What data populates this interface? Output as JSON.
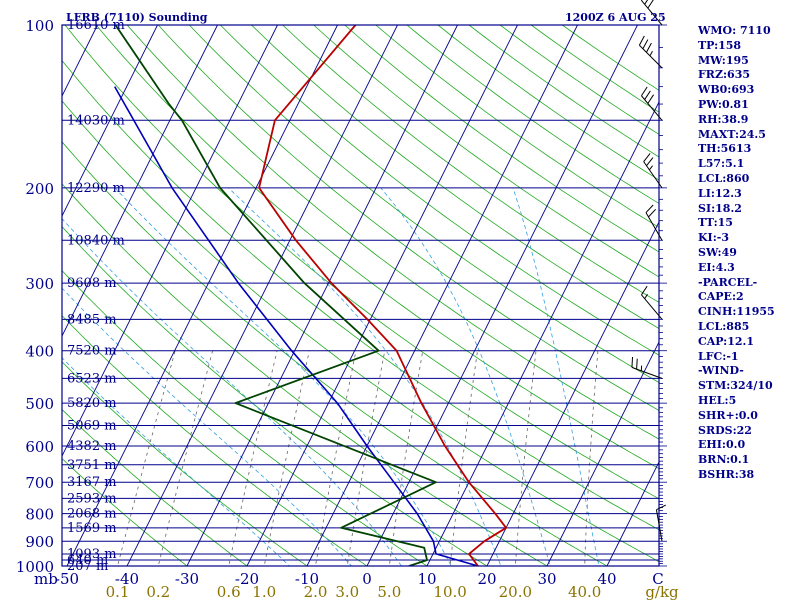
{
  "header": {
    "station": "LFRB (7110) Sounding",
    "time": "1200Z  6 AUG 25"
  },
  "indices": [
    "WMO: 7110",
    "TP:158",
    "MW:195",
    "FRZ:635",
    "WB0:693",
    "PW:0.81",
    "RH:38.9",
    "MAXT:24.5",
    "TH:5613",
    "L57:5.1",
    "LCL:860",
    "LI:12.3",
    "SI:18.2",
    "TT:15",
    "KI:-3",
    "SW:49",
    "EI:4.3",
    "-PARCEL-",
    "CAPE:2",
    "CINH:11955",
    "LCL:885",
    "CAP:12.1",
    "LFC:-1",
    "-WIND-",
    "STM:324/10",
    "HEL:5",
    "SHR+:0.0",
    "SRDS:22",
    "EHI:0.0",
    "BRN:0.1",
    "BSHR:38"
  ],
  "colors": {
    "frame": "#00008b",
    "isobar": "#00008b",
    "isotherm": "#00008b",
    "dry_adiabat": "#22aa22",
    "moist_adiabat": "#33a0e0",
    "mixing_ratio": "#666666",
    "temperature": "#bb0000",
    "dewpoint": "#004400",
    "parcel": "#0000bb",
    "mixing_label": "#8b7300"
  },
  "chart_data": {
    "type": "line",
    "title": "LFRB (7110) Sounding",
    "subtitle": "1200Z  6 AUG 25",
    "xlabel": "C",
    "ylabel": "mb",
    "pressure_levels": [
      1000,
      900,
      800,
      700,
      600,
      500,
      400,
      300,
      200,
      100
    ],
    "heights": [
      {
        "p": 1000,
        "label": "207 m"
      },
      {
        "p": 975,
        "label": "640 m"
      },
      {
        "p": 950,
        "label": "1093 m"
      },
      {
        "p": 850,
        "label": "1569 m"
      },
      {
        "p": 800,
        "label": "2068 m"
      },
      {
        "p": 750,
        "label": "2593 m"
      },
      {
        "p": 700,
        "label": "3167 m"
      },
      {
        "p": 650,
        "label": "3751 m"
      },
      {
        "p": 600,
        "label": "4382 m"
      },
      {
        "p": 550,
        "label": "5069 m"
      },
      {
        "p": 500,
        "label": "5820 m"
      },
      {
        "p": 450,
        "label": "6523 m"
      },
      {
        "p": 400,
        "label": "7520 m"
      },
      {
        "p": 350,
        "label": "8485 m"
      },
      {
        "p": 300,
        "label": "9608 m"
      },
      {
        "p": 250,
        "label": "10840 m"
      },
      {
        "p": 200,
        "label": "12290 m"
      },
      {
        "p": 150,
        "label": "14030 m"
      },
      {
        "p": 100,
        "label": "16610 m"
      }
    ],
    "temperature_ticks": [
      "-50",
      "-40",
      "-30",
      "-20",
      "-10",
      "0",
      "10",
      "20",
      "30",
      "40"
    ],
    "mixing_ratio_ticks": [
      {
        "value": 0.1,
        "label": "0.1"
      },
      {
        "value": 0.2,
        "label": "0.2"
      },
      {
        "value": 0.6,
        "label": "0.6"
      },
      {
        "value": 1.0,
        "label": "1.0"
      },
      {
        "value": 2.0,
        "label": "2.0"
      },
      {
        "value": 3.0,
        "label": "3.0"
      },
      {
        "value": 5.0,
        "label": "5.0"
      },
      {
        "value": 10.0,
        "label": "10.0"
      },
      {
        "value": 20.0,
        "label": "20.0"
      },
      {
        "value": 40.0,
        "label": "40.0"
      }
    ],
    "mixing_ratio_unit": "g/kg",
    "temperature": [
      {
        "p": 1000,
        "t": 18.5
      },
      {
        "p": 950,
        "t": 16.0
      },
      {
        "p": 900,
        "t": 17.5
      },
      {
        "p": 850,
        "t": 20.0
      },
      {
        "p": 800,
        "t": 17.0
      },
      {
        "p": 700,
        "t": 10.0
      },
      {
        "p": 600,
        "t": 3.0
      },
      {
        "p": 500,
        "t": -4.5
      },
      {
        "p": 400,
        "t": -13.0
      },
      {
        "p": 350,
        "t": -20.5
      },
      {
        "p": 300,
        "t": -29.5
      },
      {
        "p": 250,
        "t": -39.0
      },
      {
        "p": 200,
        "t": -49.5
      },
      {
        "p": 150,
        "t": -52.5
      },
      {
        "p": 100,
        "t": -47.0
      }
    ],
    "dewpoint": [
      {
        "p": 1000,
        "t": 7.0
      },
      {
        "p": 975,
        "t": 9.5
      },
      {
        "p": 925,
        "t": 8.0
      },
      {
        "p": 850,
        "t": -7.5
      },
      {
        "p": 700,
        "t": 4.5
      },
      {
        "p": 500,
        "t": -35.5
      },
      {
        "p": 400,
        "t": -16.0
      },
      {
        "p": 300,
        "t": -34.0
      },
      {
        "p": 200,
        "t": -56.0
      },
      {
        "p": 150,
        "t": -68.0
      },
      {
        "p": 140,
        "t": -71.5
      },
      {
        "p": 100,
        "t": -87.0
      }
    ],
    "parcel": [
      {
        "p": 1000,
        "t": 18.5
      },
      {
        "p": 950,
        "t": 10.5
      },
      {
        "p": 900,
        "t": 9.0
      },
      {
        "p": 800,
        "t": 4.0
      },
      {
        "p": 700,
        "t": -2.5
      },
      {
        "p": 600,
        "t": -10.0
      },
      {
        "p": 500,
        "t": -18.5
      },
      {
        "p": 400,
        "t": -30.5
      },
      {
        "p": 300,
        "t": -45.0
      },
      {
        "p": 200,
        "t": -64.0
      },
      {
        "p": 130,
        "t": -82.0
      }
    ],
    "wind_barbs": [
      {
        "p": 900,
        "dir": 350,
        "kt": 10
      },
      {
        "p": 450,
        "dir": 290,
        "kt": 25
      },
      {
        "p": 350,
        "dir": 320,
        "kt": 15
      },
      {
        "p": 250,
        "dir": 330,
        "kt": 20
      },
      {
        "p": 200,
        "dir": 325,
        "kt": 25
      },
      {
        "p": 150,
        "dir": 320,
        "kt": 30
      },
      {
        "p": 120,
        "dir": 315,
        "kt": 35
      },
      {
        "p": 100,
        "dir": 320,
        "kt": 30
      }
    ]
  }
}
